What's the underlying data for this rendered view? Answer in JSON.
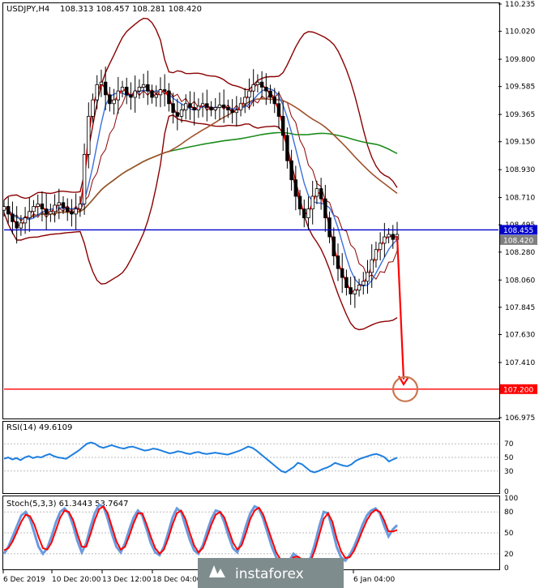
{
  "header": {
    "symbol": "USDJPY,H4",
    "ohlc": "108.313 108.457 108.281 108.420"
  },
  "colors": {
    "candle": "#000000",
    "ma_fast": "#ff0000",
    "ma_mid": "#3a6fe0",
    "ma_200": "#a0522d",
    "ma_300": "#1a8c1a",
    "bollinger": "#8b0000",
    "level_blue": "#0000cc",
    "target_red": "#ff0000",
    "rsi": "#1e7fe0",
    "stoch_main": "#6a9be0",
    "stoch_signal": "#ff0000",
    "target_circle": "#c87850"
  },
  "chart_data": [
    {
      "type": "candlestick",
      "name": "main",
      "ylim": [
        106.975,
        110.235
      ],
      "yticks": [
        "110.235",
        "110.020",
        "109.800",
        "109.585",
        "109.365",
        "109.150",
        "108.930",
        "108.710",
        "108.495",
        "108.280",
        "108.060",
        "107.845",
        "107.630",
        "107.410",
        "107.200",
        "106.975"
      ],
      "xticks": [
        "6 Dec 2019",
        "10 Dec 20:00",
        "13 Dec 12:00",
        "18 Dec 04:00",
        "6 Jan 04:00"
      ],
      "close_series": [
        108.64,
        108.58,
        108.52,
        108.47,
        108.51,
        108.55,
        108.6,
        108.64,
        108.66,
        108.62,
        108.58,
        108.6,
        108.65,
        108.67,
        108.63,
        108.6,
        108.58,
        108.62,
        108.66,
        109.05,
        109.35,
        109.48,
        109.6,
        109.62,
        109.52,
        109.45,
        109.48,
        109.55,
        109.58,
        109.52,
        109.5,
        109.55,
        109.58,
        109.6,
        109.55,
        109.5,
        109.52,
        109.56,
        109.55,
        109.45,
        109.38,
        109.35,
        109.4,
        109.45,
        109.42,
        109.4,
        109.43,
        109.45,
        109.42,
        109.4,
        109.42,
        109.44,
        109.42,
        109.4,
        109.38,
        109.4,
        109.45,
        109.5,
        109.55,
        109.6,
        109.62,
        109.58,
        109.55,
        109.5,
        109.45,
        109.35,
        109.2,
        109.0,
        108.85,
        108.72,
        108.62,
        108.55,
        108.62,
        108.72,
        108.78,
        108.7,
        108.55,
        108.4,
        108.25,
        108.15,
        108.08,
        108.0,
        107.95,
        107.98,
        108.02,
        108.05,
        108.12,
        108.22,
        108.3,
        108.35,
        108.4,
        108.42,
        108.38,
        108.42
      ],
      "horizontal_levels": [
        {
          "label": "108.455",
          "value": 108.455,
          "color": "blue"
        },
        {
          "label": "108.420",
          "value": 108.42,
          "color": "gray"
        },
        {
          "label": "107.200",
          "value": 107.2,
          "color": "red"
        }
      ]
    },
    {
      "type": "line",
      "name": "rsi",
      "label": "RSI(14) 49.6109",
      "ylim": [
        0,
        100
      ],
      "levels": [
        "70",
        "50",
        "30",
        "0"
      ],
      "values": [
        48,
        50,
        47,
        49,
        46,
        50,
        52,
        49,
        51,
        50,
        53,
        55,
        52,
        50,
        49,
        48,
        52,
        56,
        60,
        65,
        70,
        72,
        70,
        66,
        64,
        66,
        68,
        66,
        64,
        63,
        65,
        66,
        64,
        62,
        60,
        61,
        63,
        62,
        60,
        58,
        56,
        57,
        59,
        58,
        56,
        55,
        57,
        58,
        56,
        55,
        56,
        57,
        56,
        55,
        54,
        56,
        58,
        60,
        63,
        66,
        64,
        60,
        55,
        50,
        45,
        40,
        35,
        30,
        28,
        32,
        36,
        42,
        40,
        35,
        30,
        28,
        30,
        33,
        35,
        38,
        42,
        40,
        38,
        37,
        40,
        45,
        48,
        50,
        52,
        54,
        55,
        53,
        50,
        44,
        47,
        49.6
      ]
    },
    {
      "type": "line",
      "name": "stochastic",
      "label": "Stoch(5,3,3) 61.3443 53.7647",
      "ylim": [
        0,
        100
      ],
      "levels": [
        "100",
        "80",
        "50",
        "20",
        "0"
      ],
      "series": [
        {
          "name": "main",
          "values": [
            20,
            30,
            45,
            60,
            75,
            80,
            70,
            50,
            30,
            20,
            28,
            45,
            65,
            80,
            85,
            78,
            60,
            38,
            22,
            35,
            58,
            78,
            90,
            88,
            70,
            48,
            30,
            22,
            35,
            55,
            72,
            82,
            75,
            55,
            35,
            22,
            18,
            30,
            50,
            72,
            85,
            80,
            60,
            40,
            25,
            20,
            32,
            52,
            70,
            82,
            80,
            65,
            45,
            28,
            22,
            38,
            60,
            78,
            88,
            85,
            70,
            50,
            30,
            15,
            8,
            5,
            10,
            20,
            15,
            8,
            5,
            15,
            35,
            60,
            80,
            78,
            55,
            30,
            15,
            10,
            18,
            30,
            45,
            62,
            75,
            82,
            85,
            78,
            60,
            45,
            55,
            61
          ]
        },
        {
          "name": "signal",
          "values": [
            25,
            28,
            38,
            52,
            66,
            76,
            74,
            62,
            44,
            28,
            26,
            36,
            54,
            72,
            82,
            80,
            68,
            48,
            30,
            30,
            48,
            68,
            84,
            88,
            78,
            58,
            38,
            26,
            30,
            46,
            64,
            78,
            78,
            62,
            44,
            28,
            20,
            26,
            42,
            62,
            78,
            82,
            70,
            50,
            32,
            22,
            28,
            44,
            62,
            76,
            80,
            72,
            54,
            36,
            26,
            32,
            50,
            70,
            82,
            86,
            76,
            58,
            40,
            22,
            12,
            7,
            8,
            15,
            16,
            12,
            7,
            10,
            26,
            48,
            70,
            78,
            66,
            42,
            24,
            14,
            15,
            24,
            38,
            54,
            68,
            78,
            83,
            80,
            68,
            52,
            52,
            54
          ]
        }
      ]
    }
  ],
  "watermark": {
    "text": "instaforex"
  }
}
